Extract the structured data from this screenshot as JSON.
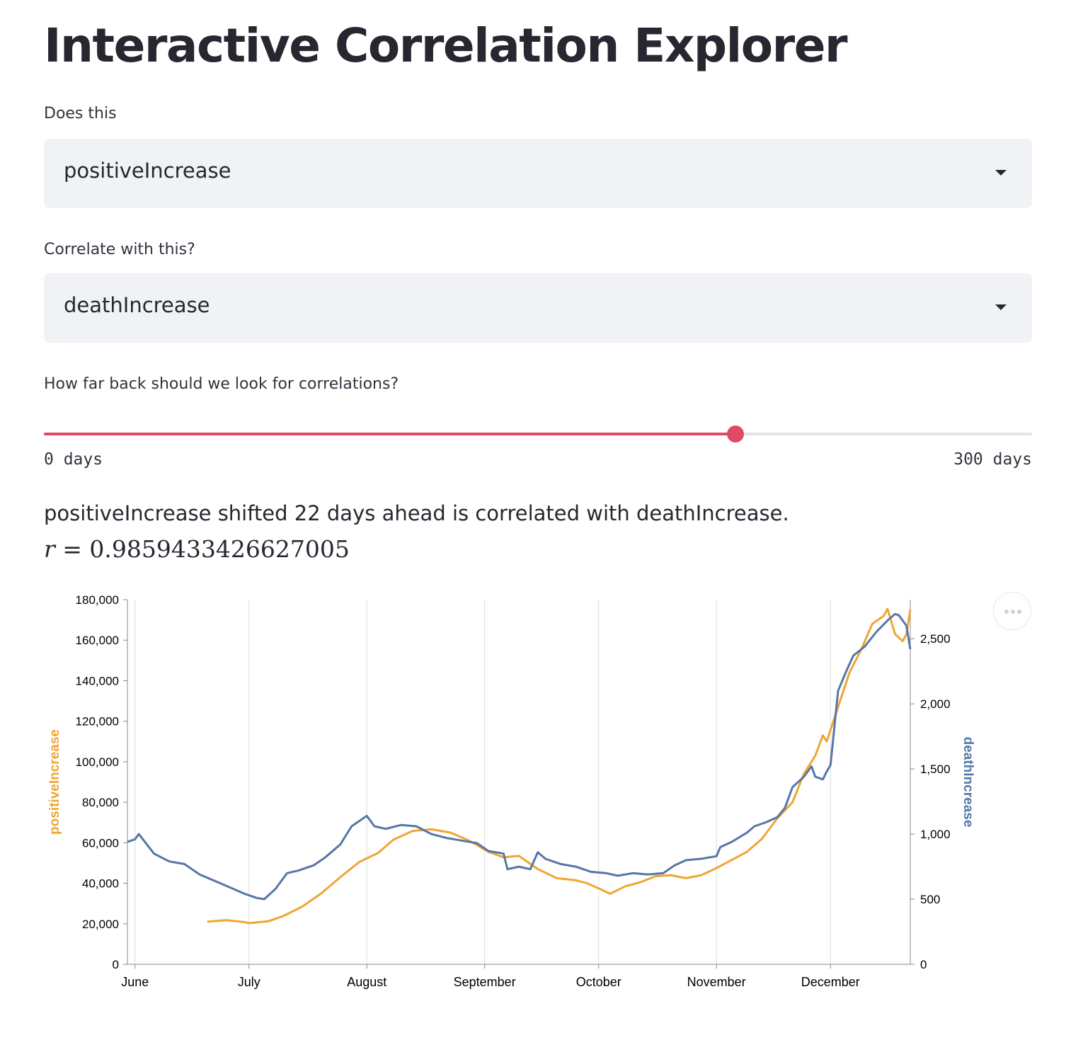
{
  "page": {
    "title": "Interactive Correlation Explorer"
  },
  "controls": {
    "first_label": "Does this",
    "first_value": "positiveIncrease",
    "second_label": "Correlate with this?",
    "second_value": "deathIncrease",
    "slider_label": "How far back should we look for correlations?",
    "slider_min_label": "0 days",
    "slider_max_label": "300 days",
    "slider_min": 0,
    "slider_max": 300,
    "slider_value": 210
  },
  "result": {
    "text": "positiveIncrease shifted 22 days ahead is correlated with deathIncrease.",
    "r_var": "r",
    "r_eq": " = ",
    "r_value": "0.9859433426627005"
  },
  "colors": {
    "accent": "#e14a66",
    "series_left": "#f0a535",
    "series_right": "#5677a5"
  },
  "icons": {
    "menu": "more-horizontal-icon",
    "caret": "caret-down-icon"
  },
  "chart_data": {
    "type": "line",
    "x_type": "date",
    "x_ticks": [
      "2020-06-01",
      "2020-07-01",
      "2020-08-01",
      "2020-09-01",
      "2020-10-01",
      "2020-11-01",
      "2020-12-01"
    ],
    "x_tick_labels": [
      "June",
      "July",
      "August",
      "September",
      "October",
      "November",
      "December"
    ],
    "xlim": [
      "2020-05-30",
      "2020-12-22"
    ],
    "y_left": {
      "label": "positiveIncrease",
      "lim": [
        0,
        180000
      ],
      "ticks": [
        0,
        20000,
        40000,
        60000,
        80000,
        100000,
        120000,
        140000,
        160000,
        180000
      ],
      "tick_labels": [
        "0",
        "20,000",
        "40,000",
        "60,000",
        "80,000",
        "100,000",
        "120,000",
        "140,000",
        "160,000",
        "180,000"
      ]
    },
    "y_right": {
      "label": "deathIncrease",
      "lim": [
        0,
        2800
      ],
      "ticks": [
        0,
        500,
        1000,
        1500,
        2000,
        2500
      ],
      "tick_labels": [
        "0",
        "500",
        "1,000",
        "1,500",
        "2,000",
        "2,500"
      ]
    },
    "grid": "vertical",
    "series": [
      {
        "name": "positiveIncrease",
        "axis": "left",
        "color": "#f0a535",
        "points": [
          [
            "2020-06-20",
            21000
          ],
          [
            "2020-06-25",
            21800
          ],
          [
            "2020-06-30",
            20800
          ],
          [
            "2020-07-01",
            20300
          ],
          [
            "2020-07-06",
            21200
          ],
          [
            "2020-07-10",
            23800
          ],
          [
            "2020-07-15",
            28500
          ],
          [
            "2020-07-20",
            35000
          ],
          [
            "2020-07-25",
            43000
          ],
          [
            "2020-07-30",
            50500
          ],
          [
            "2020-08-04",
            55000
          ],
          [
            "2020-08-08",
            61500
          ],
          [
            "2020-08-13",
            65800
          ],
          [
            "2020-08-18",
            66600
          ],
          [
            "2020-08-23",
            65000
          ],
          [
            "2020-08-28",
            61000
          ],
          [
            "2020-09-02",
            55500
          ],
          [
            "2020-09-06",
            52800
          ],
          [
            "2020-09-10",
            53500
          ],
          [
            "2020-09-15",
            47000
          ],
          [
            "2020-09-20",
            42500
          ],
          [
            "2020-09-25",
            41500
          ],
          [
            "2020-09-28",
            40000
          ],
          [
            "2020-10-01",
            37500
          ],
          [
            "2020-10-04",
            34800
          ],
          [
            "2020-10-08",
            38500
          ],
          [
            "2020-10-12",
            40500
          ],
          [
            "2020-10-16",
            43500
          ],
          [
            "2020-10-20",
            44000
          ],
          [
            "2020-10-24",
            42500
          ],
          [
            "2020-10-28",
            44000
          ],
          [
            "2020-11-01",
            47500
          ],
          [
            "2020-11-05",
            51500
          ],
          [
            "2020-11-09",
            55500
          ],
          [
            "2020-11-13",
            62000
          ],
          [
            "2020-11-17",
            72000
          ],
          [
            "2020-11-21",
            80000
          ],
          [
            "2020-11-24",
            94000
          ],
          [
            "2020-11-27",
            103000
          ],
          [
            "2020-11-29",
            113000
          ],
          [
            "2020-11-30",
            110000
          ],
          [
            "2020-12-03",
            127000
          ],
          [
            "2020-12-06",
            144000
          ],
          [
            "2020-12-09",
            155000
          ],
          [
            "2020-12-12",
            168000
          ],
          [
            "2020-12-15",
            172000
          ],
          [
            "2020-12-16",
            175500
          ],
          [
            "2020-12-18",
            163000
          ],
          [
            "2020-12-20",
            159500
          ],
          [
            "2020-12-21",
            163000
          ],
          [
            "2020-12-22",
            175000
          ]
        ]
      },
      {
        "name": "deathIncrease",
        "axis": "right",
        "color": "#5677a5",
        "points": [
          [
            "2020-05-30",
            940
          ],
          [
            "2020-06-01",
            960
          ],
          [
            "2020-06-02",
            1000
          ],
          [
            "2020-06-06",
            850
          ],
          [
            "2020-06-10",
            790
          ],
          [
            "2020-06-14",
            770
          ],
          [
            "2020-06-18",
            690
          ],
          [
            "2020-06-22",
            640
          ],
          [
            "2020-06-26",
            590
          ],
          [
            "2020-06-30",
            540
          ],
          [
            "2020-07-03",
            510
          ],
          [
            "2020-07-05",
            500
          ],
          [
            "2020-07-08",
            580
          ],
          [
            "2020-07-11",
            700
          ],
          [
            "2020-07-14",
            720
          ],
          [
            "2020-07-18",
            760
          ],
          [
            "2020-07-21",
            820
          ],
          [
            "2020-07-25",
            920
          ],
          [
            "2020-07-28",
            1060
          ],
          [
            "2020-08-01",
            1140
          ],
          [
            "2020-08-03",
            1060
          ],
          [
            "2020-08-06",
            1040
          ],
          [
            "2020-08-10",
            1070
          ],
          [
            "2020-08-14",
            1060
          ],
          [
            "2020-08-18",
            1000
          ],
          [
            "2020-08-22",
            970
          ],
          [
            "2020-08-26",
            950
          ],
          [
            "2020-08-30",
            930
          ],
          [
            "2020-09-02",
            870
          ],
          [
            "2020-09-06",
            850
          ],
          [
            "2020-09-07",
            730
          ],
          [
            "2020-09-10",
            750
          ],
          [
            "2020-09-13",
            730
          ],
          [
            "2020-09-15",
            860
          ],
          [
            "2020-09-17",
            810
          ],
          [
            "2020-09-21",
            770
          ],
          [
            "2020-09-25",
            750
          ],
          [
            "2020-09-29",
            710
          ],
          [
            "2020-10-03",
            700
          ],
          [
            "2020-10-06",
            680
          ],
          [
            "2020-10-10",
            700
          ],
          [
            "2020-10-14",
            690
          ],
          [
            "2020-10-18",
            700
          ],
          [
            "2020-10-21",
            760
          ],
          [
            "2020-10-24",
            800
          ],
          [
            "2020-10-28",
            810
          ],
          [
            "2020-11-01",
            830
          ],
          [
            "2020-11-02",
            900
          ],
          [
            "2020-11-05",
            940
          ],
          [
            "2020-11-09",
            1010
          ],
          [
            "2020-11-11",
            1060
          ],
          [
            "2020-11-14",
            1090
          ],
          [
            "2020-11-17",
            1130
          ],
          [
            "2020-11-19",
            1200
          ],
          [
            "2020-11-21",
            1360
          ],
          [
            "2020-11-24",
            1440
          ],
          [
            "2020-11-26",
            1520
          ],
          [
            "2020-11-27",
            1440
          ],
          [
            "2020-11-29",
            1420
          ],
          [
            "2020-11-30",
            1480
          ],
          [
            "2020-12-01",
            1530
          ],
          [
            "2020-12-03",
            2100
          ],
          [
            "2020-12-05",
            2240
          ],
          [
            "2020-12-07",
            2370
          ],
          [
            "2020-12-10",
            2440
          ],
          [
            "2020-12-13",
            2550
          ],
          [
            "2020-12-16",
            2640
          ],
          [
            "2020-12-18",
            2690
          ],
          [
            "2020-12-19",
            2680
          ],
          [
            "2020-12-21",
            2600
          ],
          [
            "2020-12-22",
            2420
          ]
        ]
      }
    ]
  }
}
